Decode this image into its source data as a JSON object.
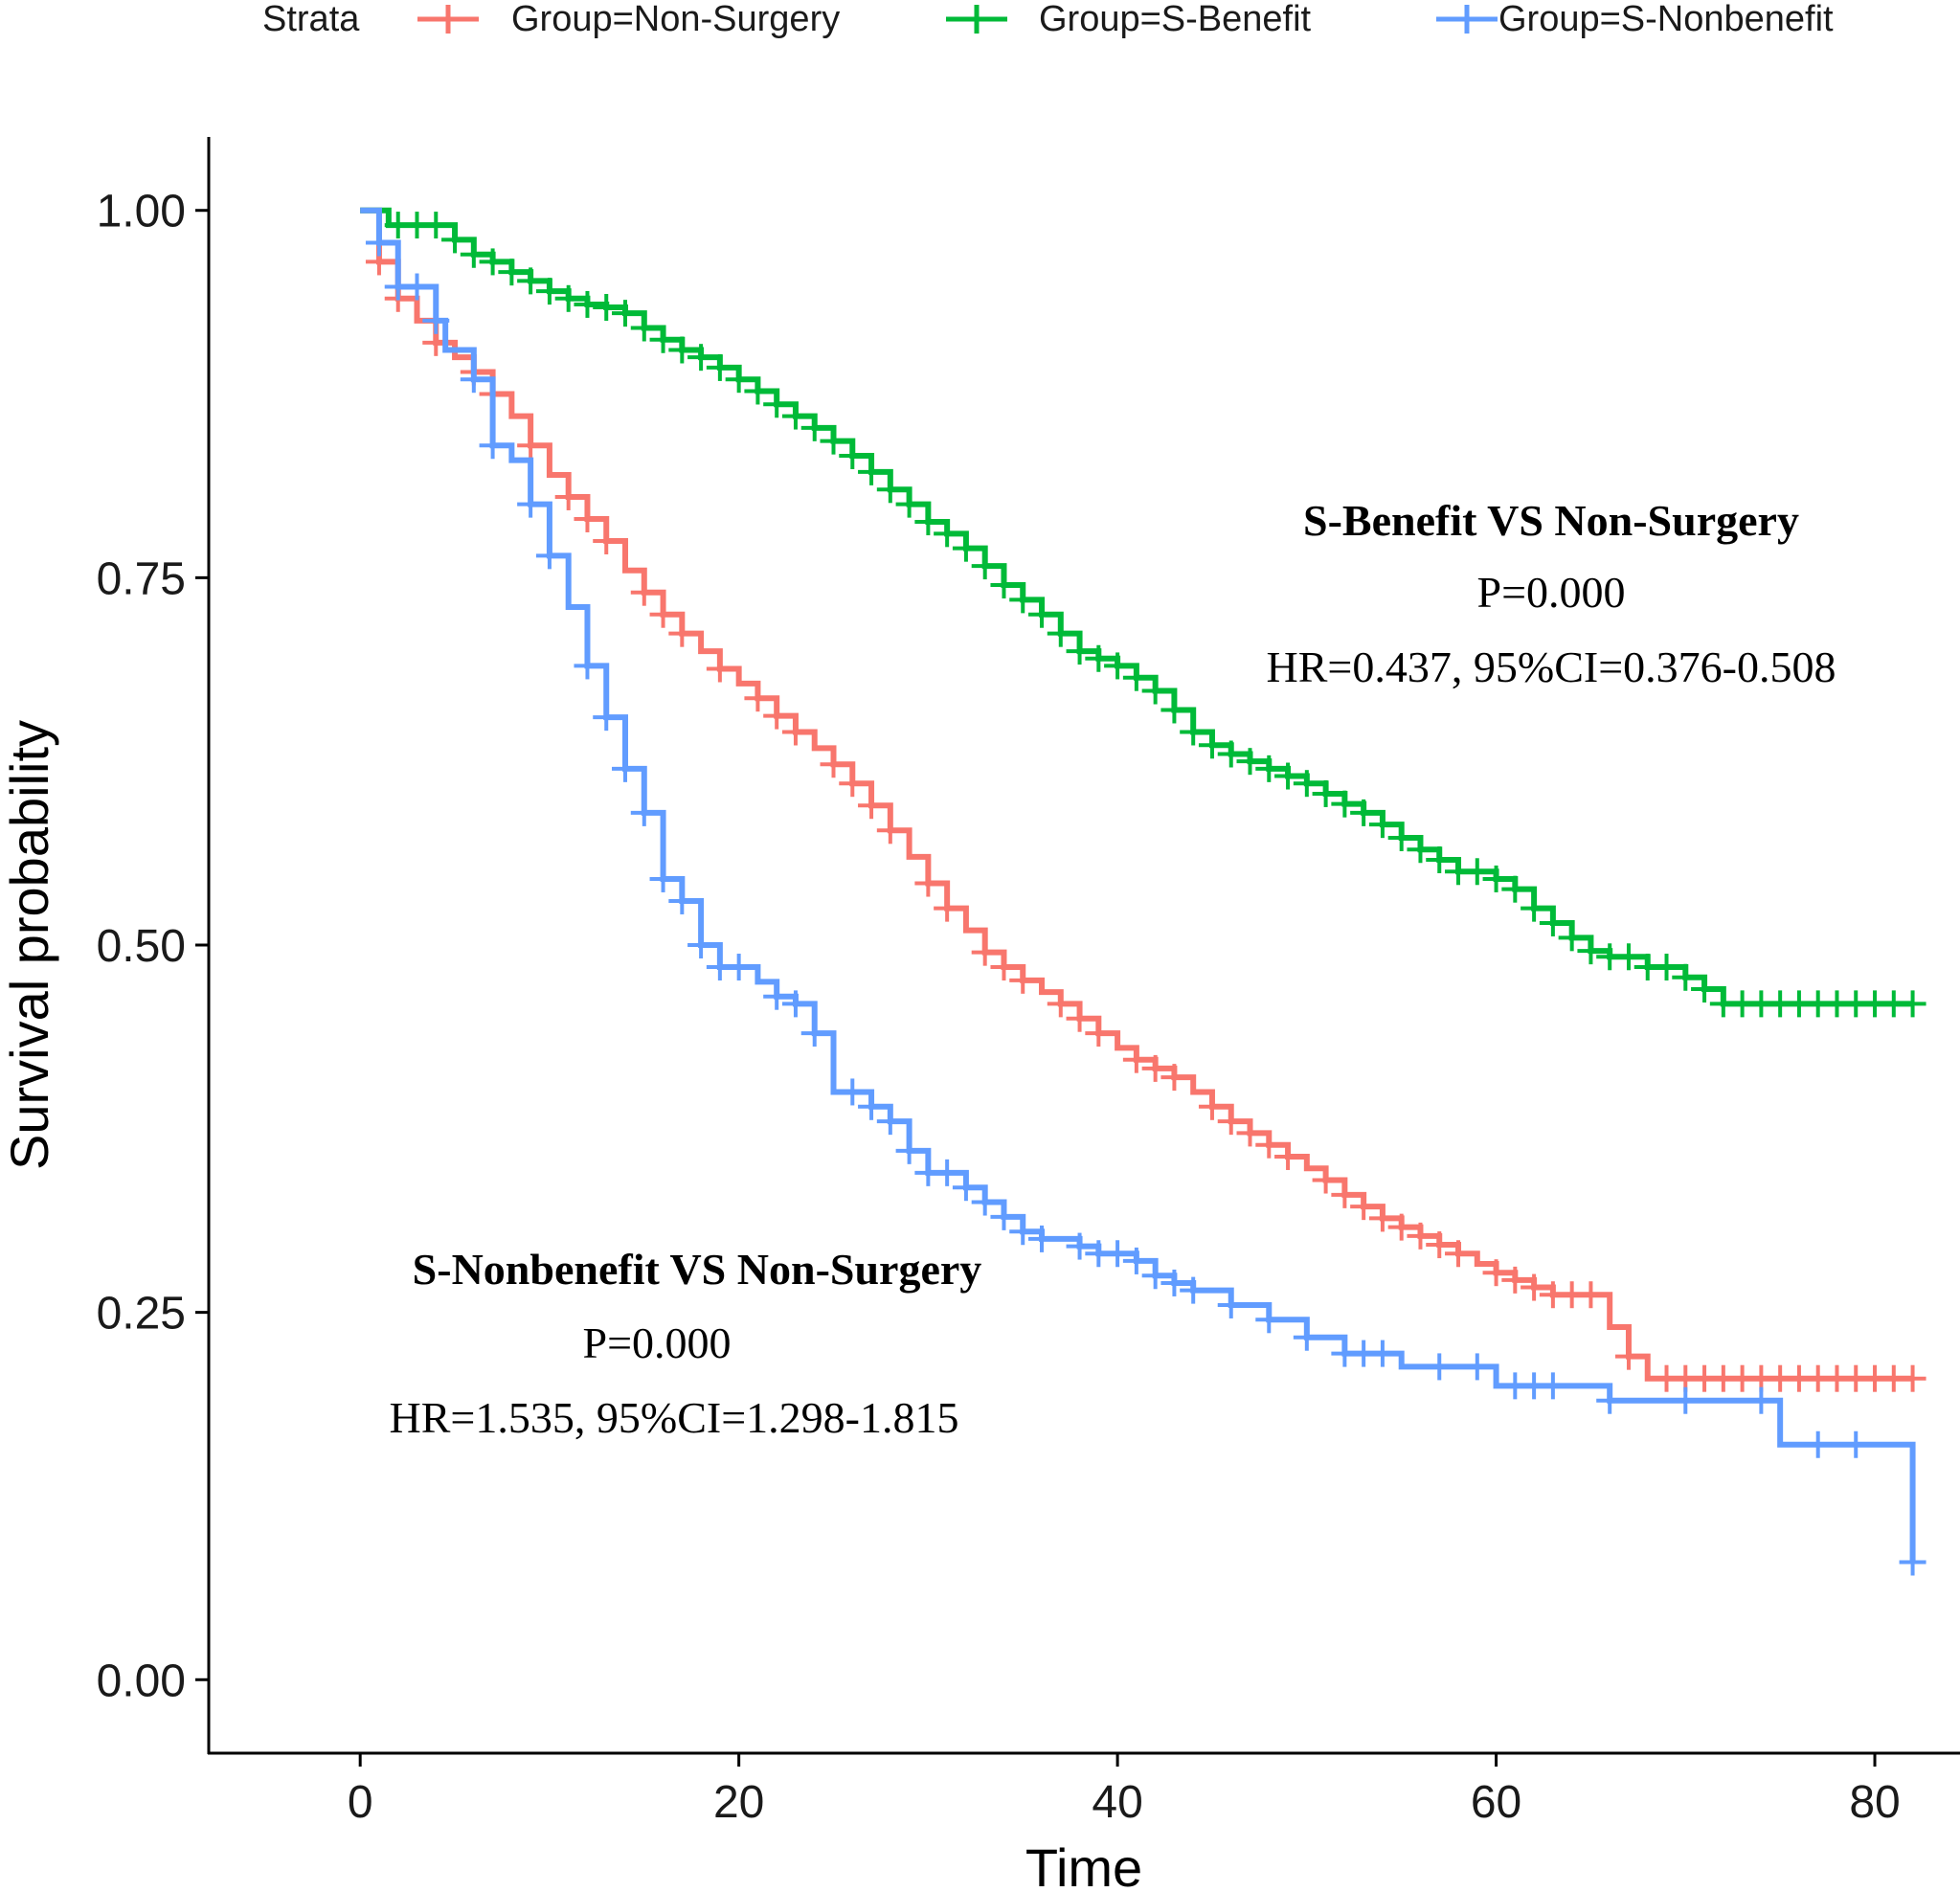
{
  "chart_data": {
    "type": "line",
    "subtype": "kaplan-meier step",
    "xlabel": "Time",
    "ylabel": "Survival probability",
    "xlim": [
      -8,
      84.5
    ],
    "ylim": [
      -0.05,
      1.05
    ],
    "xticks": [
      0,
      20,
      40,
      60,
      80
    ],
    "xtick_labels": [
      "0",
      "20",
      "40",
      "60",
      "80"
    ],
    "yticks": [
      0,
      0.25,
      0.5,
      0.75,
      1
    ],
    "ytick_labels": [
      "0.00",
      "0.25",
      "0.50",
      "0.75",
      "1.00"
    ],
    "grid": false,
    "legend": {
      "title": "Strata",
      "placement": "top",
      "entries": [
        "Group=Non-Surgery",
        "Group=S-Benefit",
        "Group=S-Nonbenefit"
      ]
    },
    "series": [
      {
        "name": "Group=Non-Surgery",
        "color": "#F8766D",
        "steps": [
          [
            0,
            1.0
          ],
          [
            1,
            0.965
          ],
          [
            2,
            0.94
          ],
          [
            3,
            0.925
          ],
          [
            4,
            0.91
          ],
          [
            5,
            0.9
          ],
          [
            6,
            0.89
          ],
          [
            7,
            0.875
          ],
          [
            8,
            0.86
          ],
          [
            9,
            0.84
          ],
          [
            10,
            0.82
          ],
          [
            11,
            0.805
          ],
          [
            12,
            0.79
          ],
          [
            13,
            0.775
          ],
          [
            14,
            0.755
          ],
          [
            15,
            0.74
          ],
          [
            16,
            0.725
          ],
          [
            17,
            0.712
          ],
          [
            18,
            0.7
          ],
          [
            19,
            0.688
          ],
          [
            20,
            0.678
          ],
          [
            21,
            0.668
          ],
          [
            22,
            0.656
          ],
          [
            23,
            0.645
          ],
          [
            24,
            0.634
          ],
          [
            25,
            0.623
          ],
          [
            26,
            0.61
          ],
          [
            27,
            0.595
          ],
          [
            28,
            0.578
          ],
          [
            29,
            0.56
          ],
          [
            30,
            0.542
          ],
          [
            31,
            0.525
          ],
          [
            32,
            0.51
          ],
          [
            33,
            0.495
          ],
          [
            34,
            0.485
          ],
          [
            35,
            0.476
          ],
          [
            36,
            0.468
          ],
          [
            37,
            0.46
          ],
          [
            38,
            0.45
          ],
          [
            39,
            0.44
          ],
          [
            40,
            0.43
          ],
          [
            41,
            0.422
          ],
          [
            42,
            0.416
          ],
          [
            43,
            0.41
          ],
          [
            44,
            0.4
          ],
          [
            45,
            0.39
          ],
          [
            46,
            0.38
          ],
          [
            47,
            0.372
          ],
          [
            48,
            0.364
          ],
          [
            49,
            0.356
          ],
          [
            50,
            0.348
          ],
          [
            51,
            0.34
          ],
          [
            52,
            0.33
          ],
          [
            53,
            0.322
          ],
          [
            54,
            0.314
          ],
          [
            55,
            0.308
          ],
          [
            56,
            0.302
          ],
          [
            57,
            0.296
          ],
          [
            58,
            0.29
          ],
          [
            59,
            0.283
          ],
          [
            60,
            0.277
          ],
          [
            61,
            0.272
          ],
          [
            62,
            0.267
          ],
          [
            63,
            0.262
          ],
          [
            64,
            0.262
          ],
          [
            65,
            0.262
          ],
          [
            66,
            0.24
          ],
          [
            67,
            0.22
          ],
          [
            68,
            0.205
          ],
          [
            82,
            0.205
          ]
        ],
        "censor_times": [
          1,
          2,
          4,
          6,
          7,
          9,
          11,
          12,
          13,
          15,
          16,
          17,
          19,
          21,
          22,
          23,
          25,
          26,
          27,
          28,
          30,
          31,
          33,
          34,
          35,
          37,
          38,
          39,
          41,
          42,
          43,
          45,
          46,
          47,
          48,
          49,
          51,
          52,
          53,
          54,
          55,
          56,
          57,
          58,
          60,
          61,
          62,
          63,
          64,
          65,
          67,
          69,
          70,
          71,
          72,
          73,
          74,
          75,
          76,
          77,
          78,
          79,
          80,
          81,
          82
        ]
      },
      {
        "name": "Group=S-Benefit",
        "color": "#00BA38",
        "steps": [
          [
            0,
            1.0
          ],
          [
            1.5,
            0.99
          ],
          [
            5,
            0.98
          ],
          [
            6,
            0.97
          ],
          [
            7,
            0.965
          ],
          [
            8,
            0.958
          ],
          [
            9,
            0.952
          ],
          [
            10,
            0.945
          ],
          [
            11,
            0.94
          ],
          [
            12,
            0.936
          ],
          [
            13,
            0.934
          ],
          [
            14,
            0.93
          ],
          [
            15,
            0.92
          ],
          [
            16,
            0.912
          ],
          [
            17,
            0.905
          ],
          [
            18,
            0.9
          ],
          [
            19,
            0.893
          ],
          [
            20,
            0.885
          ],
          [
            21,
            0.877
          ],
          [
            22,
            0.868
          ],
          [
            23,
            0.86
          ],
          [
            24,
            0.852
          ],
          [
            25,
            0.843
          ],
          [
            26,
            0.833
          ],
          [
            27,
            0.822
          ],
          [
            28,
            0.81
          ],
          [
            29,
            0.8
          ],
          [
            30,
            0.788
          ],
          [
            31,
            0.78
          ],
          [
            32,
            0.77
          ],
          [
            33,
            0.758
          ],
          [
            34,
            0.745
          ],
          [
            35,
            0.735
          ],
          [
            36,
            0.725
          ],
          [
            37,
            0.712
          ],
          [
            38,
            0.7
          ],
          [
            39,
            0.695
          ],
          [
            40,
            0.69
          ],
          [
            41,
            0.682
          ],
          [
            42,
            0.673
          ],
          [
            43,
            0.66
          ],
          [
            44,
            0.645
          ],
          [
            45,
            0.636
          ],
          [
            46,
            0.63
          ],
          [
            47,
            0.625
          ],
          [
            48,
            0.62
          ],
          [
            49,
            0.615
          ],
          [
            50,
            0.61
          ],
          [
            51,
            0.603
          ],
          [
            52,
            0.596
          ],
          [
            53,
            0.59
          ],
          [
            54,
            0.582
          ],
          [
            55,
            0.573
          ],
          [
            56,
            0.565
          ],
          [
            57,
            0.558
          ],
          [
            58,
            0.55
          ],
          [
            60,
            0.545
          ],
          [
            61,
            0.538
          ],
          [
            62,
            0.525
          ],
          [
            63,
            0.515
          ],
          [
            64,
            0.505
          ],
          [
            65,
            0.496
          ],
          [
            66,
            0.492
          ],
          [
            68,
            0.485
          ],
          [
            70,
            0.478
          ],
          [
            71,
            0.47
          ],
          [
            72,
            0.46
          ],
          [
            82,
            0.46
          ]
        ],
        "censor_times": [
          2,
          3,
          4,
          5,
          6,
          7,
          8,
          9,
          10,
          11,
          12,
          13,
          14,
          15,
          16,
          17,
          18,
          19,
          20,
          21,
          22,
          23,
          24,
          25,
          26,
          27,
          28,
          29,
          30,
          31,
          32,
          33,
          34,
          35,
          36,
          37,
          38,
          39,
          40,
          41,
          42,
          43,
          44,
          45,
          46,
          47,
          48,
          49,
          50,
          51,
          52,
          53,
          54,
          55,
          56,
          57,
          58,
          59,
          60,
          61,
          62,
          63,
          64,
          65,
          66,
          67,
          68,
          69,
          70,
          71,
          72,
          73,
          74,
          75,
          76,
          77,
          78,
          79,
          80,
          81,
          82
        ]
      },
      {
        "name": "Group=S-Nonbenefit",
        "color": "#619CFF",
        "steps": [
          [
            0,
            1.0
          ],
          [
            1,
            0.978
          ],
          [
            2,
            0.948
          ],
          [
            4,
            0.925
          ],
          [
            4.5,
            0.905
          ],
          [
            6,
            0.885
          ],
          [
            7,
            0.84
          ],
          [
            8,
            0.83
          ],
          [
            9,
            0.8
          ],
          [
            10,
            0.765
          ],
          [
            11,
            0.73
          ],
          [
            12,
            0.69
          ],
          [
            13,
            0.655
          ],
          [
            14,
            0.62
          ],
          [
            15,
            0.59
          ],
          [
            16,
            0.545
          ],
          [
            17,
            0.53
          ],
          [
            18,
            0.5
          ],
          [
            19,
            0.485
          ],
          [
            21,
            0.475
          ],
          [
            22,
            0.465
          ],
          [
            23,
            0.46
          ],
          [
            24,
            0.44
          ],
          [
            25,
            0.4
          ],
          [
            27,
            0.39
          ],
          [
            28,
            0.38
          ],
          [
            29,
            0.36
          ],
          [
            30,
            0.345
          ],
          [
            32,
            0.335
          ],
          [
            33,
            0.325
          ],
          [
            34,
            0.315
          ],
          [
            35,
            0.305
          ],
          [
            36,
            0.3
          ],
          [
            38,
            0.295
          ],
          [
            39,
            0.29
          ],
          [
            41,
            0.285
          ],
          [
            42,
            0.275
          ],
          [
            43,
            0.27
          ],
          [
            44,
            0.265
          ],
          [
            46,
            0.255
          ],
          [
            48,
            0.245
          ],
          [
            50,
            0.233
          ],
          [
            52,
            0.222
          ],
          [
            55,
            0.213
          ],
          [
            60,
            0.2
          ],
          [
            66,
            0.19
          ],
          [
            71,
            0.19
          ],
          [
            75,
            0.16
          ],
          [
            82,
            0.08
          ]
        ],
        "censor_times": [
          1,
          2,
          3,
          4,
          6,
          7,
          9,
          10,
          12,
          13,
          14,
          15,
          16,
          17,
          18,
          19,
          20,
          22,
          23,
          24,
          26,
          27,
          28,
          29,
          30,
          31,
          32,
          33,
          34,
          35,
          36,
          38,
          39,
          40,
          41,
          42,
          43,
          44,
          46,
          48,
          50,
          52,
          53,
          54,
          57,
          59,
          61,
          62,
          63,
          66,
          70,
          74,
          77,
          79,
          82
        ]
      }
    ],
    "annotations": [
      {
        "title": "S-Benefit VS Non-Surgery",
        "p_text": "P=0.000",
        "hr_text": "HR=0.437, 95%CI=0.376-0.508"
      },
      {
        "title": "S-Nonbenefit VS Non-Surgery",
        "p_text": "P=0.000",
        "hr_text": "HR=1.535, 95%CI=1.298-1.815"
      }
    ]
  }
}
